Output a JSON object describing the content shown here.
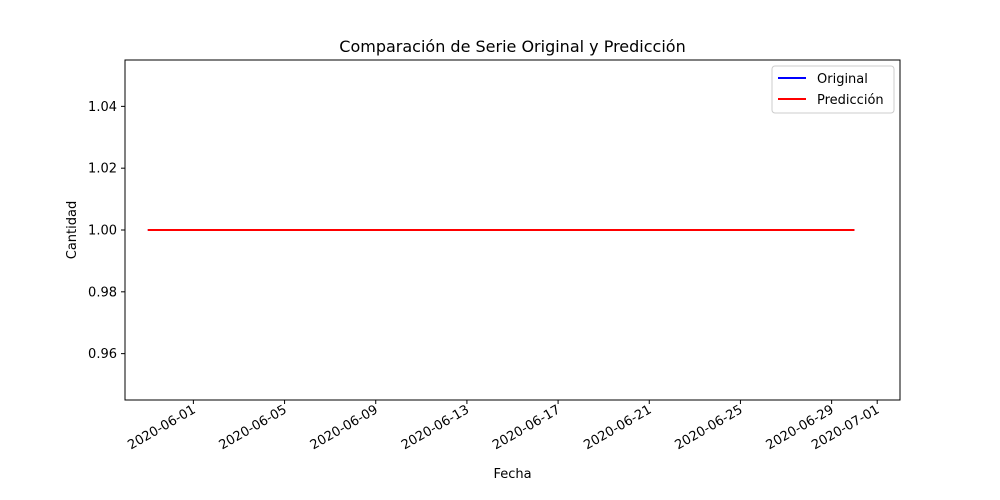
{
  "chart_data": {
    "type": "line",
    "title": "Comparación de Serie Original y Predicción",
    "xlabel": "Fecha",
    "ylabel": "Cantidad",
    "xlim": [
      "2020-05-29",
      "2020-07-02"
    ],
    "ylim": [
      0.945,
      1.055
    ],
    "x_ticks": [
      "2020-06-01",
      "2020-06-05",
      "2020-06-09",
      "2020-06-13",
      "2020-06-17",
      "2020-06-21",
      "2020-06-25",
      "2020-06-29",
      "2020-07-01"
    ],
    "y_ticks": [
      0.96,
      0.98,
      1.0,
      1.02,
      1.04
    ],
    "y_tick_labels": [
      "0.96",
      "0.98",
      "1.00",
      "1.02",
      "1.04"
    ],
    "legend_position": "top-right",
    "grid": false,
    "series": [
      {
        "name": "Original",
        "color": "#0000ff",
        "x": [
          "2020-05-30",
          "2020-06-01",
          "2020-06-05",
          "2020-06-09",
          "2020-06-13",
          "2020-06-17",
          "2020-06-21",
          "2020-06-25",
          "2020-06-29",
          "2020-06-30"
        ],
        "values": [
          1,
          1,
          1,
          1,
          1,
          1,
          1,
          1,
          1,
          1
        ]
      },
      {
        "name": "Predicción",
        "color": "#ff0000",
        "x": [
          "2020-05-30",
          "2020-06-01",
          "2020-06-05",
          "2020-06-09",
          "2020-06-13",
          "2020-06-17",
          "2020-06-21",
          "2020-06-25",
          "2020-06-29",
          "2020-06-30"
        ],
        "values": [
          1,
          1,
          1,
          1,
          1,
          1,
          1,
          1,
          1,
          1
        ]
      }
    ]
  }
}
